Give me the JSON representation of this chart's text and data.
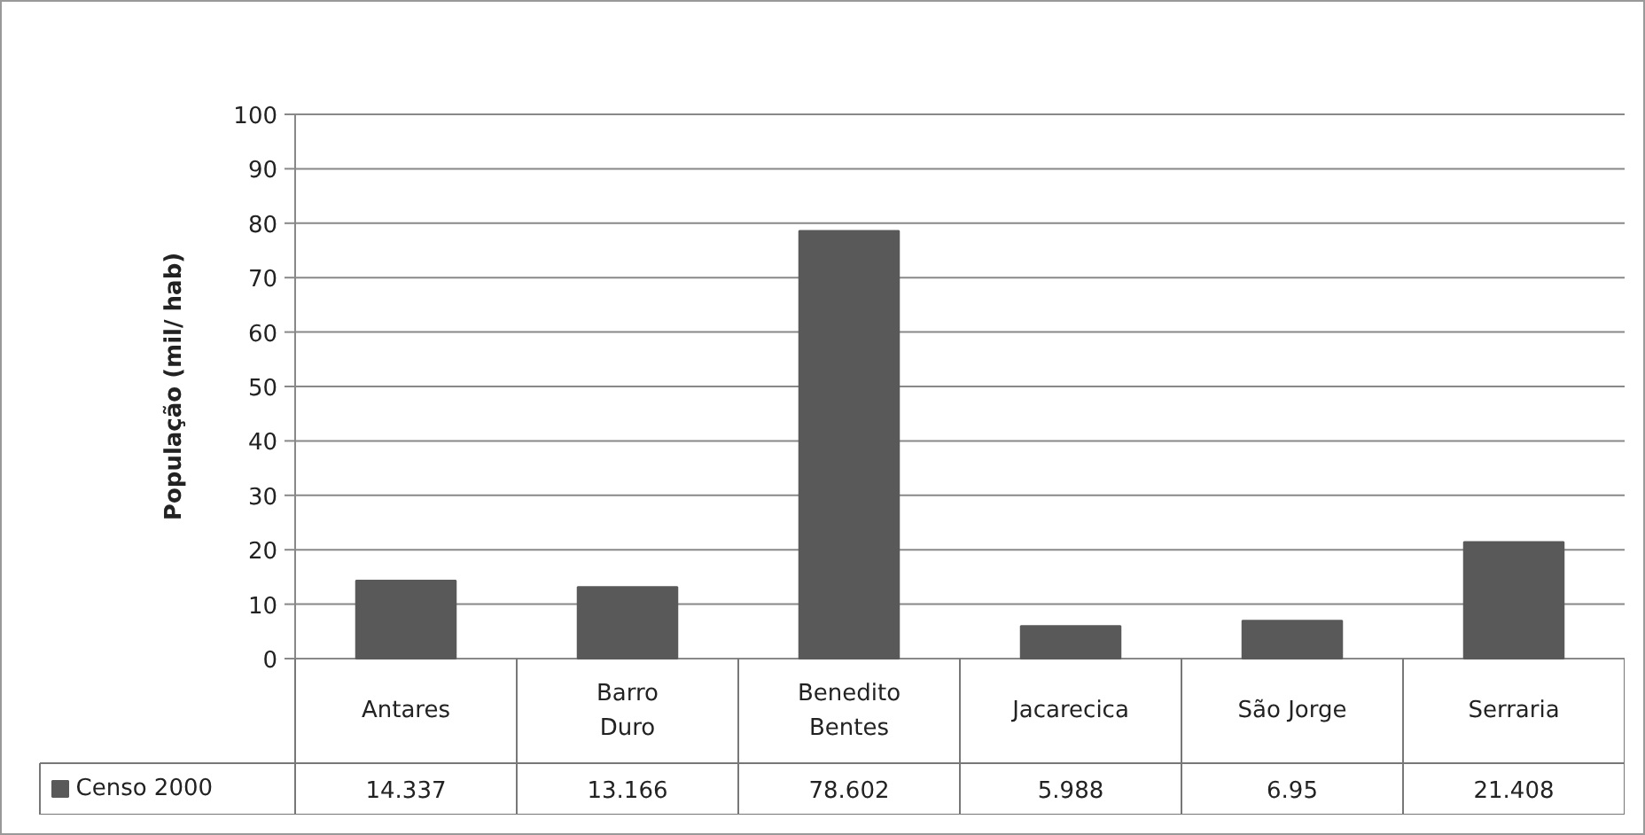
{
  "chart_data": {
    "type": "bar",
    "ylabel": "População (mil/ hab)",
    "categories": [
      "Antares",
      "Barro Duro",
      "Benedito Bentes",
      "Jacarecica",
      "São Jorge",
      "Serraria"
    ],
    "series": [
      {
        "name": "Censo 2000",
        "color": "#595959",
        "values": [
          14.337,
          13.166,
          78.602,
          5.988,
          6.95,
          21.408
        ],
        "value_labels": [
          "14.337",
          "13.166",
          "78.602",
          "5.988",
          "6.95",
          "21.408"
        ]
      }
    ],
    "ylim": [
      0,
      100
    ],
    "yticks": [
      0,
      10,
      20,
      30,
      40,
      50,
      60,
      70,
      80,
      90,
      100
    ],
    "grid": "y",
    "legend": "bottom"
  }
}
